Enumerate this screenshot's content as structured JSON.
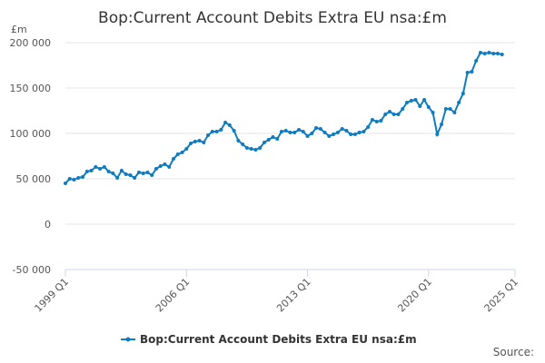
{
  "chart_data": {
    "type": "line",
    "title": "Bop:Current Account Debits Extra EU nsa:£m",
    "y_label": "£m",
    "source": "Source:",
    "categories": [
      "1999 Q1",
      null,
      null,
      null,
      null,
      null,
      null,
      null,
      null,
      null,
      null,
      null,
      null,
      null,
      null,
      null,
      null,
      null,
      null,
      null,
      null,
      null,
      null,
      null,
      null,
      null,
      null,
      null,
      "2006 Q1",
      null,
      null,
      null,
      null,
      null,
      null,
      null,
      null,
      null,
      null,
      null,
      null,
      null,
      null,
      null,
      null,
      null,
      null,
      null,
      null,
      null,
      null,
      null,
      null,
      null,
      null,
      null,
      "2013 Q1",
      null,
      null,
      null,
      null,
      null,
      null,
      null,
      null,
      null,
      null,
      null,
      null,
      null,
      null,
      null,
      null,
      null,
      null,
      null,
      null,
      null,
      null,
      null,
      null,
      null,
      null,
      null,
      "2020 Q1",
      null,
      null,
      null,
      null,
      null,
      null,
      null,
      null,
      null,
      null,
      null,
      null,
      null,
      null,
      null,
      null,
      null,
      null,
      null,
      "2025 Q1"
    ],
    "series": [
      {
        "name": "Bop:Current Account Debits Extra EU nsa:£m",
        "color": "#0f7cbf",
        "values": [
          45000,
          50000,
          49000,
          51000,
          52000,
          58000,
          59000,
          63000,
          61000,
          63000,
          58000,
          56000,
          51000,
          59000,
          55000,
          54000,
          51000,
          57000,
          56000,
          57000,
          54000,
          61000,
          64000,
          66000,
          63000,
          72000,
          77000,
          79000,
          83000,
          89000,
          91000,
          92000,
          90000,
          98000,
          102000,
          102000,
          104000,
          112000,
          109000,
          103000,
          92000,
          88000,
          84000,
          83000,
          82000,
          84000,
          90000,
          93000,
          96000,
          94000,
          102000,
          103000,
          101000,
          101000,
          104000,
          102000,
          97000,
          100000,
          106000,
          105000,
          101000,
          97000,
          99000,
          101000,
          105000,
          103000,
          99000,
          99000,
          101000,
          102000,
          107000,
          115000,
          113000,
          114000,
          121000,
          124000,
          121000,
          121000,
          127000,
          134000,
          136000,
          137000,
          130000,
          137000,
          129000,
          123000,
          99000,
          110000,
          127000,
          127000,
          123000,
          134000,
          144000,
          167000,
          168000,
          180000,
          189000,
          188000,
          189000,
          188000,
          188000,
          187000,
          null,
          null,
          null
        ]
      }
    ],
    "ylim": [
      -50000,
      200000
    ],
    "yticks": [
      {
        "value": -50000,
        "label": "-50 000"
      },
      0,
      {
        "value": 50000,
        "label": "50 000"
      },
      {
        "value": 100000,
        "label": "100 000"
      },
      {
        "value": 150000,
        "label": "150 000"
      },
      {
        "value": 200000,
        "label": "200 000"
      }
    ],
    "grid": true
  }
}
